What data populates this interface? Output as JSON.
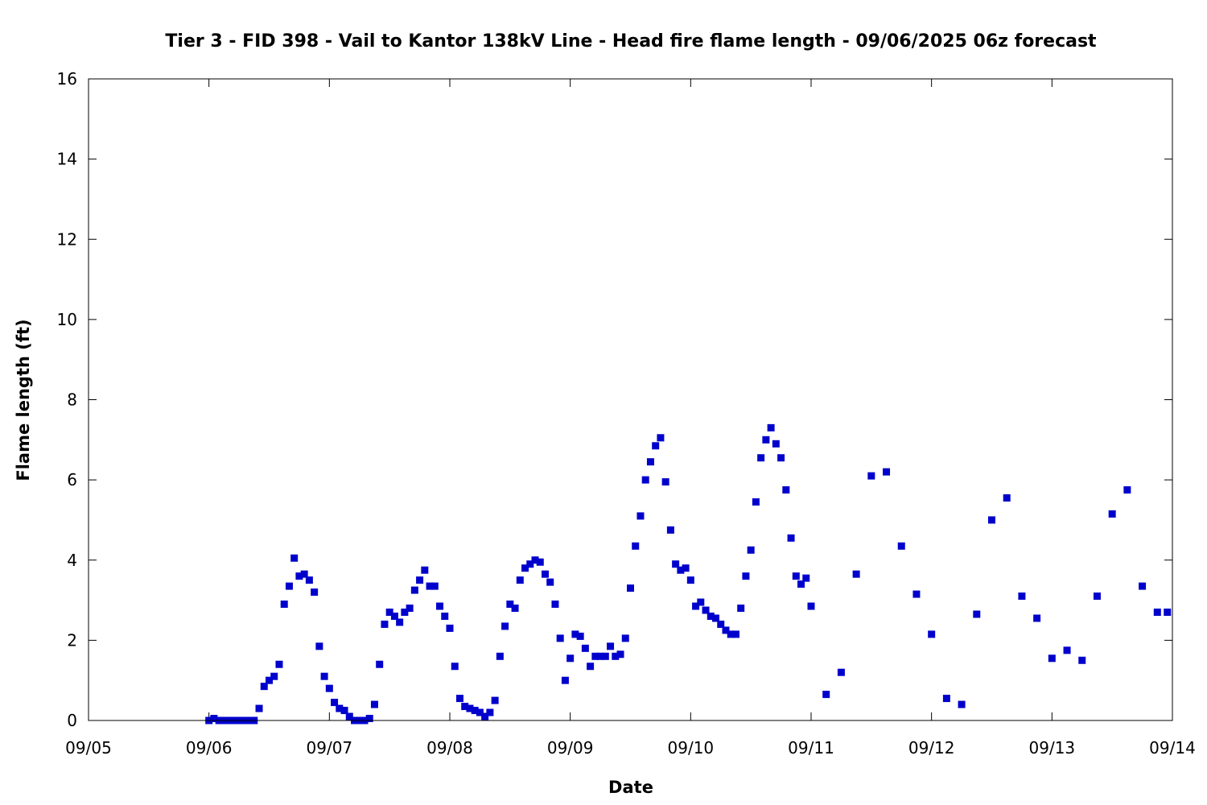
{
  "chart_data": {
    "type": "scatter",
    "title": "Tier 3 - FID 398 - Vail to Kantor 138kV Line - Head fire flame length - 09/06/2025 06z forecast",
    "xlabel": "Date",
    "ylabel": "Flame length (ft)",
    "xlim": [
      "2025-09-05T00:00",
      "2025-09-14T00:00"
    ],
    "ylim": [
      0,
      16
    ],
    "x_ticks": [
      "09/05",
      "09/06",
      "09/07",
      "09/08",
      "09/09",
      "09/10",
      "09/11",
      "09/12",
      "09/13",
      "09/14"
    ],
    "y_ticks": [
      0,
      2,
      4,
      6,
      8,
      10,
      12,
      14,
      16
    ],
    "grid": false,
    "marker": "square",
    "color": "#0000cc",
    "series": [
      {
        "points": [
          [
            "2025-09-06T00:00",
            0.0
          ],
          [
            "2025-09-06T01:00",
            0.05
          ],
          [
            "2025-09-06T02:00",
            0.0
          ],
          [
            "2025-09-06T03:00",
            0.0
          ],
          [
            "2025-09-06T04:00",
            0.0
          ],
          [
            "2025-09-06T05:00",
            0.0
          ],
          [
            "2025-09-06T06:00",
            0.0
          ],
          [
            "2025-09-06T07:00",
            0.0
          ],
          [
            "2025-09-06T08:00",
            0.0
          ],
          [
            "2025-09-06T09:00",
            0.0
          ],
          [
            "2025-09-06T10:00",
            0.3
          ],
          [
            "2025-09-06T11:00",
            0.85
          ],
          [
            "2025-09-06T12:00",
            1.0
          ],
          [
            "2025-09-06T13:00",
            1.1
          ],
          [
            "2025-09-06T14:00",
            1.4
          ],
          [
            "2025-09-06T15:00",
            2.9
          ],
          [
            "2025-09-06T16:00",
            3.35
          ],
          [
            "2025-09-06T17:00",
            4.05
          ],
          [
            "2025-09-06T18:00",
            3.6
          ],
          [
            "2025-09-06T19:00",
            3.65
          ],
          [
            "2025-09-06T20:00",
            3.5
          ],
          [
            "2025-09-06T21:00",
            3.2
          ],
          [
            "2025-09-06T22:00",
            1.85
          ],
          [
            "2025-09-06T23:00",
            1.1
          ],
          [
            "2025-09-07T00:00",
            0.8
          ],
          [
            "2025-09-07T01:00",
            0.45
          ],
          [
            "2025-09-07T02:00",
            0.3
          ],
          [
            "2025-09-07T03:00",
            0.25
          ],
          [
            "2025-09-07T04:00",
            0.1
          ],
          [
            "2025-09-07T05:00",
            0.0
          ],
          [
            "2025-09-07T06:00",
            0.0
          ],
          [
            "2025-09-07T07:00",
            0.0
          ],
          [
            "2025-09-07T08:00",
            0.05
          ],
          [
            "2025-09-07T09:00",
            0.4
          ],
          [
            "2025-09-07T10:00",
            1.4
          ],
          [
            "2025-09-07T11:00",
            2.4
          ],
          [
            "2025-09-07T12:00",
            2.7
          ],
          [
            "2025-09-07T13:00",
            2.6
          ],
          [
            "2025-09-07T14:00",
            2.45
          ],
          [
            "2025-09-07T15:00",
            2.7
          ],
          [
            "2025-09-07T16:00",
            2.8
          ],
          [
            "2025-09-07T17:00",
            3.25
          ],
          [
            "2025-09-07T18:00",
            3.5
          ],
          [
            "2025-09-07T19:00",
            3.75
          ],
          [
            "2025-09-07T20:00",
            3.35
          ],
          [
            "2025-09-07T21:00",
            3.35
          ],
          [
            "2025-09-07T22:00",
            2.85
          ],
          [
            "2025-09-07T23:00",
            2.6
          ],
          [
            "2025-09-08T00:00",
            2.3
          ],
          [
            "2025-09-08T01:00",
            1.35
          ],
          [
            "2025-09-08T02:00",
            0.55
          ],
          [
            "2025-09-08T03:00",
            0.35
          ],
          [
            "2025-09-08T04:00",
            0.3
          ],
          [
            "2025-09-08T05:00",
            0.25
          ],
          [
            "2025-09-08T06:00",
            0.2
          ],
          [
            "2025-09-08T07:00",
            0.1
          ],
          [
            "2025-09-08T08:00",
            0.2
          ],
          [
            "2025-09-08T09:00",
            0.5
          ],
          [
            "2025-09-08T10:00",
            1.6
          ],
          [
            "2025-09-08T11:00",
            2.35
          ],
          [
            "2025-09-08T12:00",
            2.9
          ],
          [
            "2025-09-08T13:00",
            2.8
          ],
          [
            "2025-09-08T14:00",
            3.5
          ],
          [
            "2025-09-08T15:00",
            3.8
          ],
          [
            "2025-09-08T16:00",
            3.9
          ],
          [
            "2025-09-08T17:00",
            4.0
          ],
          [
            "2025-09-08T18:00",
            3.95
          ],
          [
            "2025-09-08T19:00",
            3.65
          ],
          [
            "2025-09-08T20:00",
            3.45
          ],
          [
            "2025-09-08T21:00",
            2.9
          ],
          [
            "2025-09-08T22:00",
            2.05
          ],
          [
            "2025-09-08T23:00",
            1.0
          ],
          [
            "2025-09-09T00:00",
            1.55
          ],
          [
            "2025-09-09T01:00",
            2.15
          ],
          [
            "2025-09-09T02:00",
            2.1
          ],
          [
            "2025-09-09T03:00",
            1.8
          ],
          [
            "2025-09-09T04:00",
            1.35
          ],
          [
            "2025-09-09T05:00",
            1.6
          ],
          [
            "2025-09-09T06:00",
            1.6
          ],
          [
            "2025-09-09T07:00",
            1.6
          ],
          [
            "2025-09-09T08:00",
            1.85
          ],
          [
            "2025-09-09T09:00",
            1.6
          ],
          [
            "2025-09-09T10:00",
            1.65
          ],
          [
            "2025-09-09T11:00",
            2.05
          ],
          [
            "2025-09-09T12:00",
            3.3
          ],
          [
            "2025-09-09T13:00",
            4.35
          ],
          [
            "2025-09-09T14:00",
            5.1
          ],
          [
            "2025-09-09T15:00",
            6.0
          ],
          [
            "2025-09-09T16:00",
            6.45
          ],
          [
            "2025-09-09T17:00",
            6.85
          ],
          [
            "2025-09-09T18:00",
            7.05
          ],
          [
            "2025-09-09T19:00",
            5.95
          ],
          [
            "2025-09-09T20:00",
            4.75
          ],
          [
            "2025-09-09T21:00",
            3.9
          ],
          [
            "2025-09-09T22:00",
            3.75
          ],
          [
            "2025-09-09T23:00",
            3.8
          ],
          [
            "2025-09-10T00:00",
            3.5
          ],
          [
            "2025-09-10T01:00",
            2.85
          ],
          [
            "2025-09-10T02:00",
            2.95
          ],
          [
            "2025-09-10T03:00",
            2.75
          ],
          [
            "2025-09-10T04:00",
            2.6
          ],
          [
            "2025-09-10T05:00",
            2.55
          ],
          [
            "2025-09-10T06:00",
            2.4
          ],
          [
            "2025-09-10T07:00",
            2.25
          ],
          [
            "2025-09-10T08:00",
            2.15
          ],
          [
            "2025-09-10T09:00",
            2.15
          ],
          [
            "2025-09-10T10:00",
            2.8
          ],
          [
            "2025-09-10T11:00",
            3.6
          ],
          [
            "2025-09-10T12:00",
            4.25
          ],
          [
            "2025-09-10T13:00",
            5.45
          ],
          [
            "2025-09-10T14:00",
            6.55
          ],
          [
            "2025-09-10T15:00",
            7.0
          ],
          [
            "2025-09-10T16:00",
            7.3
          ],
          [
            "2025-09-10T17:00",
            6.9
          ],
          [
            "2025-09-10T18:00",
            6.55
          ],
          [
            "2025-09-10T19:00",
            5.75
          ],
          [
            "2025-09-10T20:00",
            4.55
          ],
          [
            "2025-09-10T21:00",
            3.6
          ],
          [
            "2025-09-10T22:00",
            3.4
          ],
          [
            "2025-09-10T23:00",
            3.55
          ],
          [
            "2025-09-11T00:00",
            2.85
          ],
          [
            "2025-09-11T03:00",
            0.65
          ],
          [
            "2025-09-11T06:00",
            1.2
          ],
          [
            "2025-09-11T09:00",
            3.65
          ],
          [
            "2025-09-11T12:00",
            6.1
          ],
          [
            "2025-09-11T15:00",
            6.2
          ],
          [
            "2025-09-11T18:00",
            4.35
          ],
          [
            "2025-09-11T21:00",
            3.15
          ],
          [
            "2025-09-12T00:00",
            2.15
          ],
          [
            "2025-09-12T03:00",
            0.55
          ],
          [
            "2025-09-12T06:00",
            0.4
          ],
          [
            "2025-09-12T09:00",
            2.65
          ],
          [
            "2025-09-12T12:00",
            5.0
          ],
          [
            "2025-09-12T15:00",
            5.55
          ],
          [
            "2025-09-12T18:00",
            3.1
          ],
          [
            "2025-09-12T21:00",
            2.55
          ],
          [
            "2025-09-13T00:00",
            1.55
          ],
          [
            "2025-09-13T03:00",
            1.75
          ],
          [
            "2025-09-13T06:00",
            1.5
          ],
          [
            "2025-09-13T09:00",
            3.1
          ],
          [
            "2025-09-13T12:00",
            5.15
          ],
          [
            "2025-09-13T15:00",
            5.75
          ],
          [
            "2025-09-13T18:00",
            3.35
          ],
          [
            "2025-09-13T21:00",
            2.7
          ],
          [
            "2025-09-13T23:00",
            2.7
          ]
        ]
      }
    ]
  }
}
